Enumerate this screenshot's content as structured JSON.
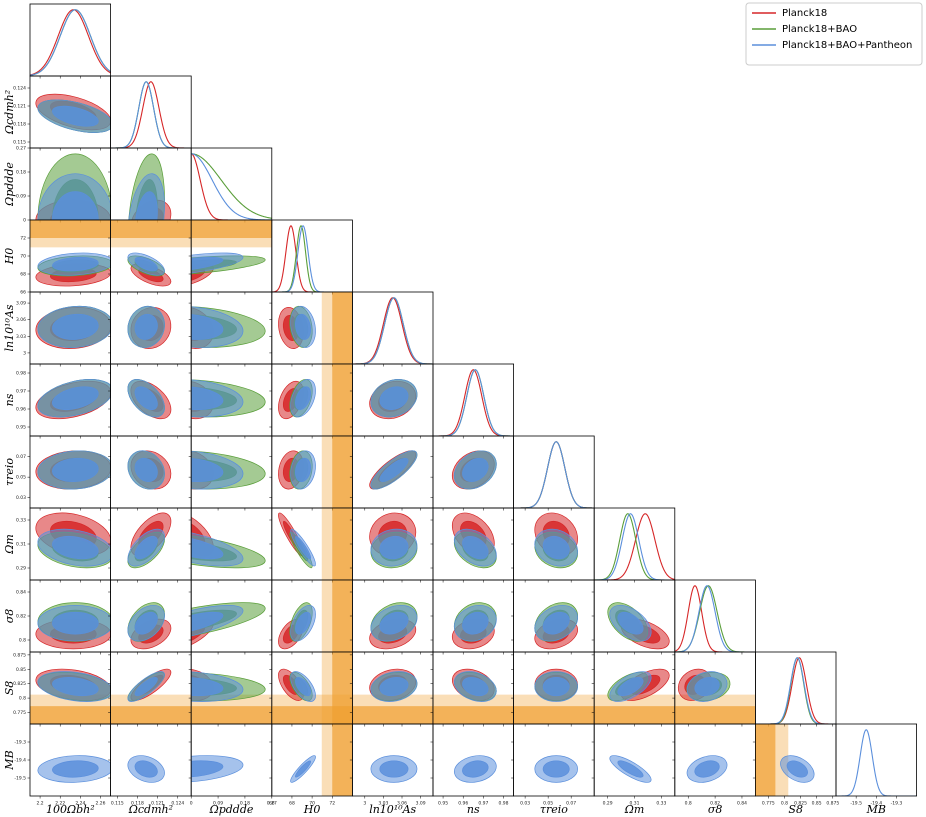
{
  "chart_data": {
    "type": "triangle",
    "legend": "upper right",
    "parameters": [
      {
        "label": "100Ωbh²",
        "xlim": [
          2.19,
          2.27
        ],
        "ticks": [
          2.2,
          2.22,
          2.24,
          2.26
        ]
      },
      {
        "label": "Ωcdmh²",
        "xlim": [
          0.114,
          0.126
        ],
        "ticks": [
          0.115,
          0.118,
          0.121,
          0.124
        ]
      },
      {
        "label": "Ωpddde",
        "xlim": [
          0,
          0.27
        ],
        "ticks": [
          0,
          0.09,
          0.18,
          0.27
        ]
      },
      {
        "label": "H0",
        "xlim": [
          66,
          74
        ],
        "ticks": [
          66,
          68,
          70,
          72
        ]
      },
      {
        "label": "ln10¹⁰As",
        "xlim": [
          2.98,
          3.11
        ],
        "ticks": [
          3,
          3.03,
          3.06,
          3.09
        ]
      },
      {
        "label": "ns",
        "xlim": [
          0.945,
          0.985
        ],
        "ticks": [
          0.95,
          0.96,
          0.97,
          0.98
        ]
      },
      {
        "label": "τreio",
        "xlim": [
          0.02,
          0.09
        ],
        "ticks": [
          0.03,
          0.05,
          0.07
        ]
      },
      {
        "label": "Ωm",
        "xlim": [
          0.28,
          0.34
        ],
        "ticks": [
          0.29,
          0.31,
          0.33
        ]
      },
      {
        "label": "σ8",
        "xlim": [
          0.79,
          0.85
        ],
        "ticks": [
          0.8,
          0.82,
          0.84
        ]
      },
      {
        "label": "S8",
        "xlim": [
          0.755,
          0.88
        ],
        "ticks": [
          0.775,
          0.8,
          0.825,
          0.85,
          0.875
        ]
      },
      {
        "label": "MB",
        "xlim": [
          -19.6,
          -19.2
        ],
        "ticks": [
          -19.5,
          -19.4,
          -19.3
        ]
      }
    ],
    "series": [
      {
        "name": "Planck18",
        "color": "#d62728",
        "means": [
          2.233,
          0.12,
          0,
          67.9,
          3.045,
          0.965,
          0.057,
          0.318,
          0.805,
          0.823,
          null
        ],
        "sigmas": [
          0.015,
          0.0012,
          0.03,
          0.5,
          0.015,
          0.0042,
          0.0075,
          0.0072,
          0.005,
          0.011,
          null
        ]
      },
      {
        "name": "Planck18+BAO",
        "color": "#5a9e3a",
        "means": [
          2.235,
          0.1193,
          0,
          68.9,
          3.047,
          0.966,
          0.057,
          0.305,
          0.815,
          0.82,
          null
        ],
        "sigmas": [
          0.015,
          0.0011,
          0.1,
          0.45,
          0.015,
          0.0042,
          0.0075,
          0.006,
          0.0065,
          0.01,
          null
        ]
      },
      {
        "name": "Planck18+BAO+Pantheon",
        "color": "#5b8fdc",
        "means": [
          2.235,
          0.1193,
          0,
          69.1,
          3.047,
          0.966,
          0.057,
          0.307,
          0.814,
          0.82,
          -19.45
        ],
        "sigmas": [
          0.015,
          0.0011,
          0.07,
          0.5,
          0.015,
          0.0042,
          0.0075,
          0.0062,
          0.006,
          0.0105,
          0.03
        ]
      }
    ],
    "correlations": [
      [],
      [
        -0.5
      ],
      [
        0,
        0.3
      ],
      [
        0.2,
        -0.6,
        0.6
      ],
      [
        0.1,
        0.1,
        -0.2,
        -0.2
      ],
      [
        0.4,
        -0.5,
        -0.2,
        0.4,
        0.2
      ],
      [
        0.1,
        -0.2,
        -0.2,
        0.2,
        0.8,
        0.3
      ],
      [
        -0.3,
        0.6,
        -0.6,
        -0.9,
        0.1,
        -0.4,
        -0.2
      ],
      [
        0,
        0.4,
        0.7,
        0.5,
        0.3,
        0.2,
        0.3,
        -0.5
      ],
      [
        -0.3,
        0.8,
        -0.2,
        -0.6,
        0.2,
        -0.3,
        0,
        0.6,
        0.2
      ],
      [
        0.1,
        -0.3,
        0.3,
        0.9,
        0,
        0.2,
        0,
        -0.8,
        0.3,
        -0.4
      ]
    ],
    "bands": [
      {
        "param": 3,
        "center": 73.04,
        "sigma": 1.04,
        "color": "#f0a030"
      },
      {
        "param": 9,
        "center": 0.766,
        "sigma": 0.02,
        "color": "#f0a030"
      }
    ]
  }
}
